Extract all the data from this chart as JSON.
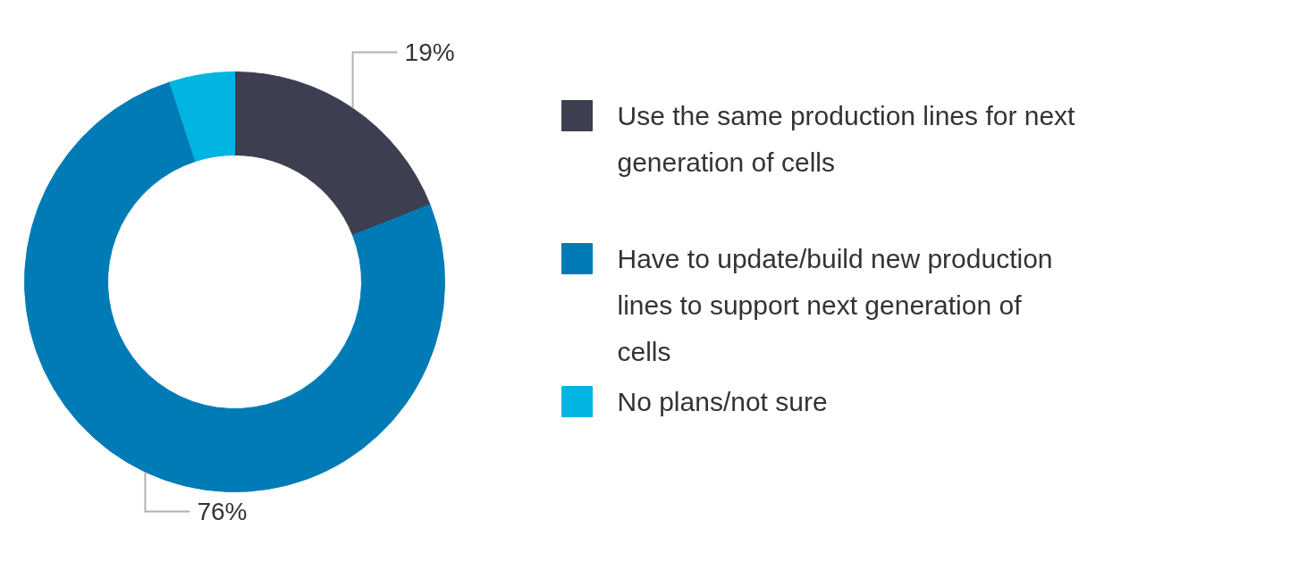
{
  "chart_data": {
    "type": "donut",
    "categories": [
      "Use the same production lines for next generation of cells",
      "Have to update/build new production lines to support next generation of cells",
      "No plans/not sure"
    ],
    "values": [
      19,
      76,
      5
    ],
    "colors": [
      "#3d3f50",
      "#007bb6",
      "#00b5e2"
    ],
    "value_labels": [
      "19%",
      "76%",
      null
    ],
    "legend": "right"
  }
}
